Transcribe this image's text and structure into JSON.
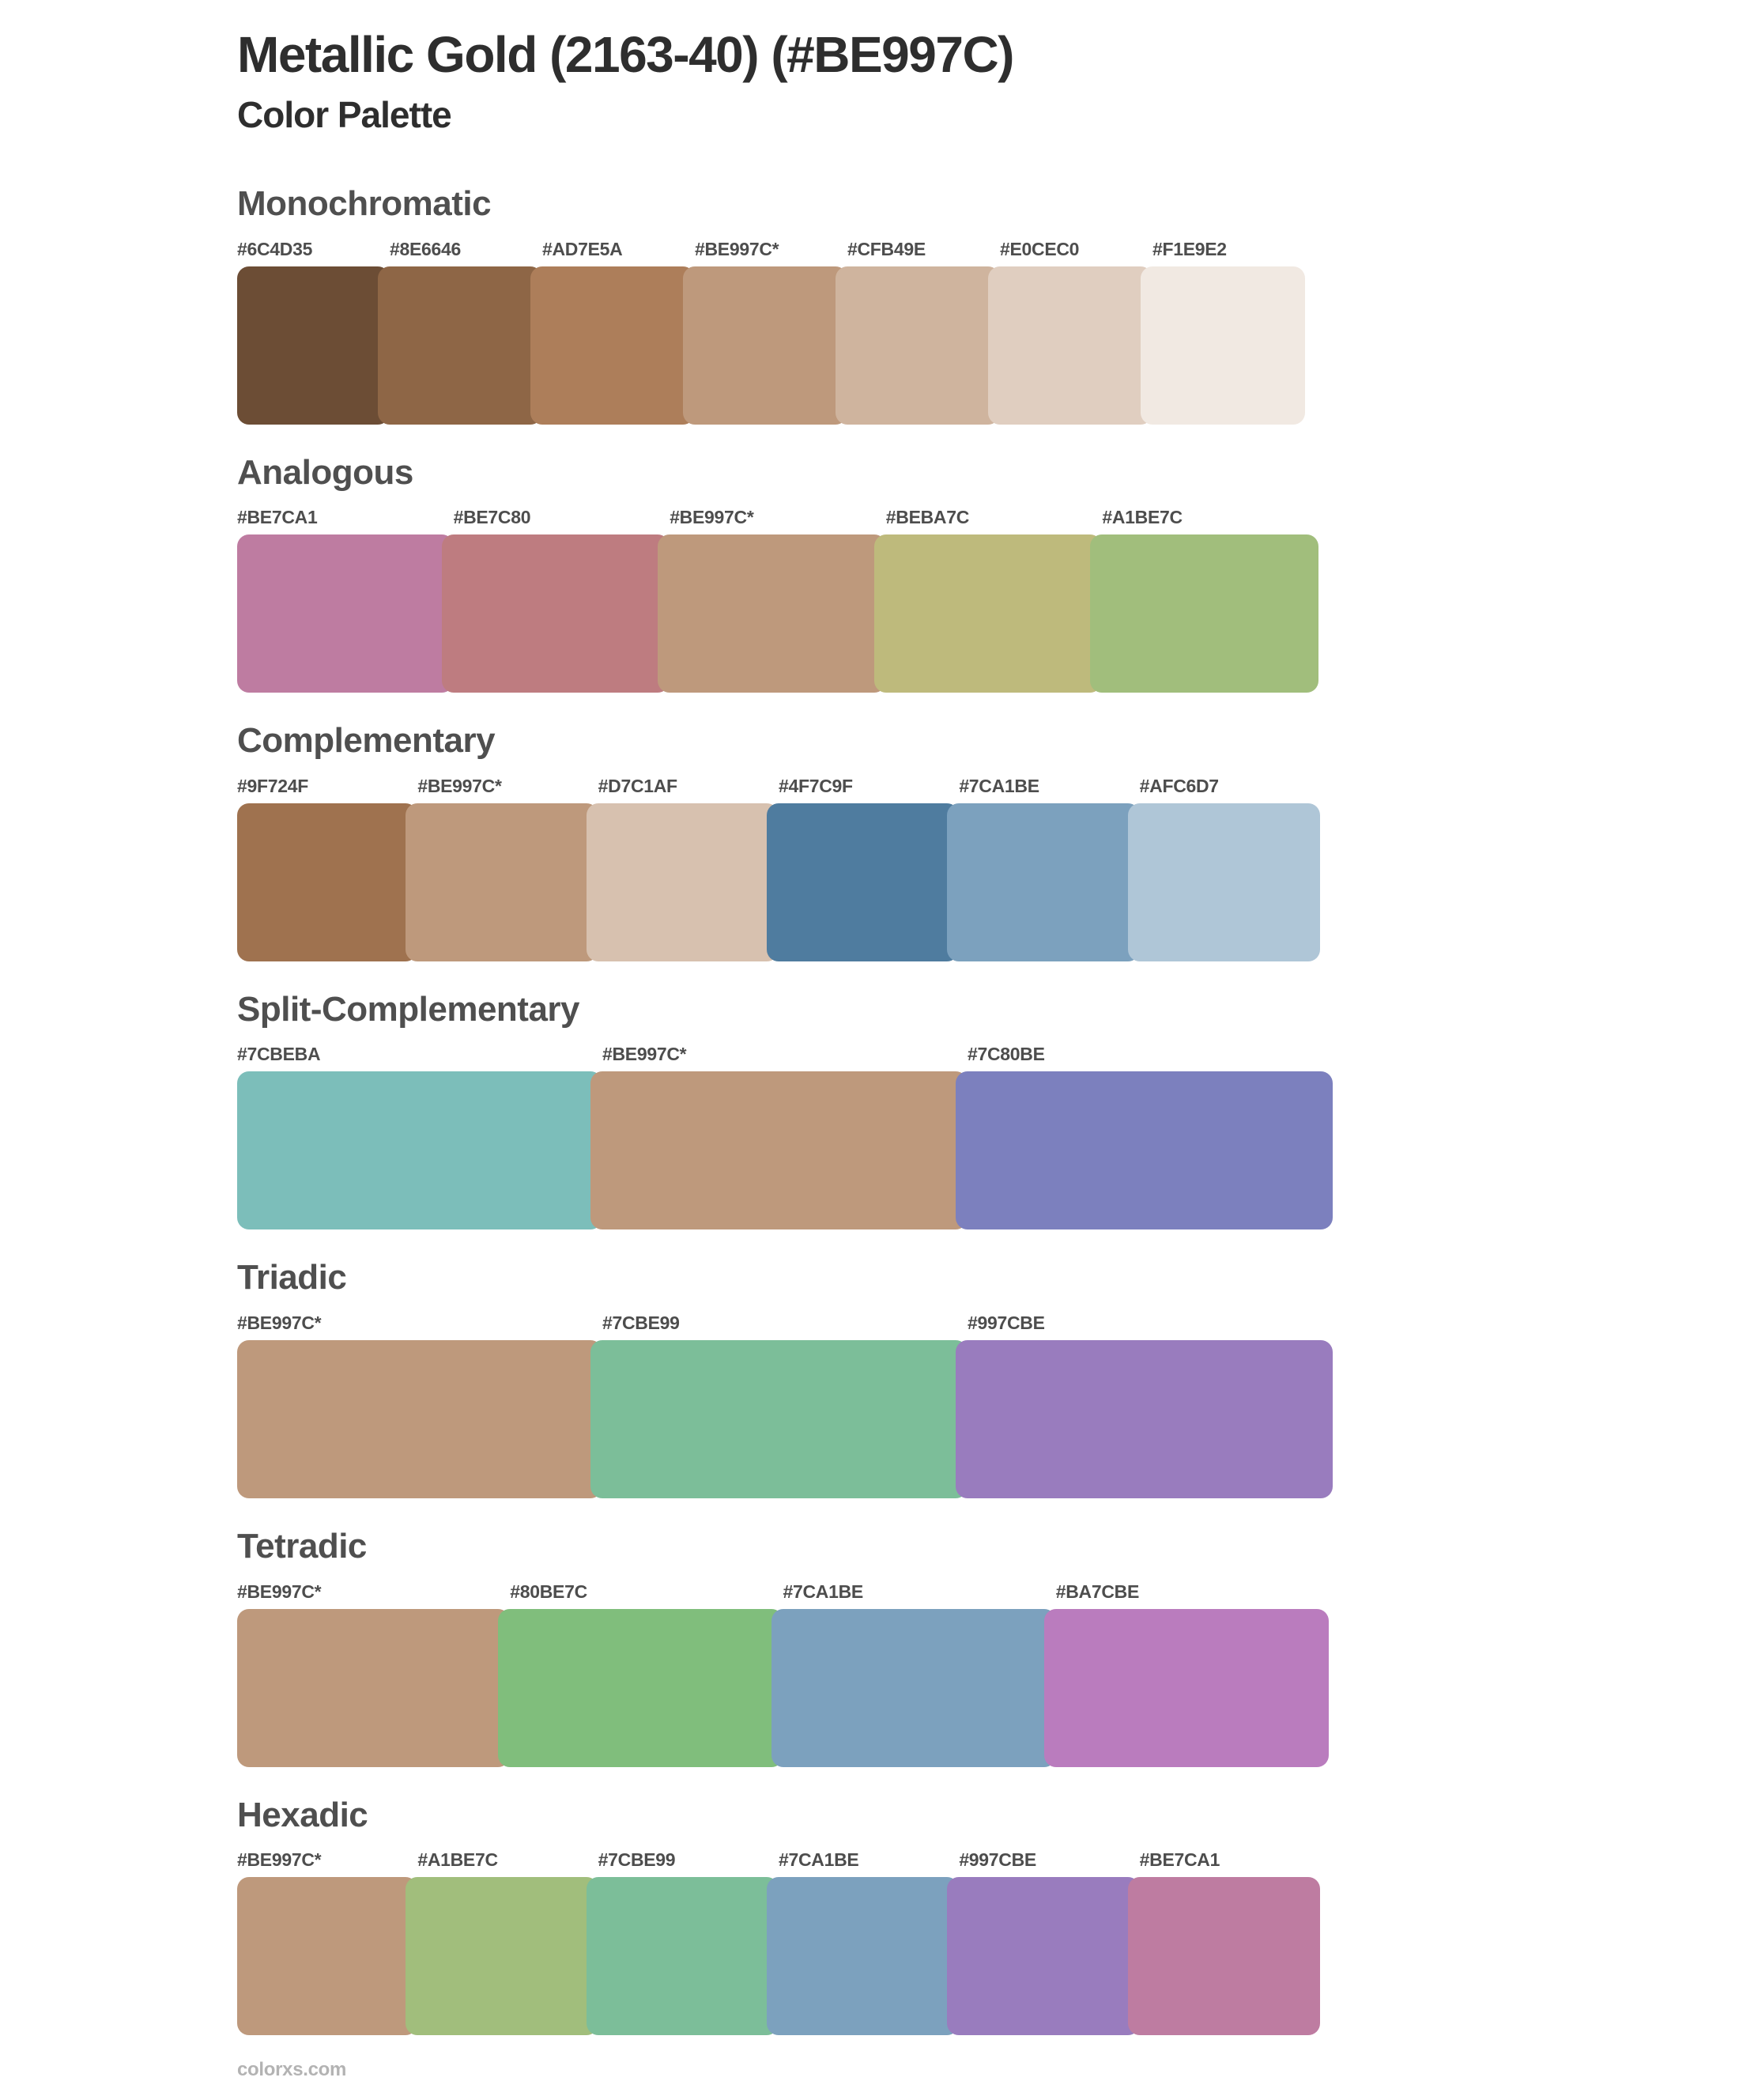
{
  "page": {
    "title": "Metallic Gold (2163-40) (#BE997C)",
    "subtitle": "Color Palette",
    "footer": "colorxs.com"
  },
  "base_color": "#BE997C",
  "text_colors": {
    "title": "#2e2e2e",
    "heading": "#4f4f4f",
    "label": "#4d4d4d",
    "footer": "#b3b3b3"
  },
  "sections": [
    {
      "name": "Monochromatic",
      "swatches": [
        {
          "label": "#6C4D35",
          "color": "#6C4D35"
        },
        {
          "label": "#8E6646",
          "color": "#8E6646"
        },
        {
          "label": "#AD7E5A",
          "color": "#AD7E5A"
        },
        {
          "label": "#BE997C*",
          "color": "#BE997C"
        },
        {
          "label": "#CFB49E",
          "color": "#CFB49E"
        },
        {
          "label": "#E0CEC0",
          "color": "#E0CEC0"
        },
        {
          "label": "#F1E9E2",
          "color": "#F1E9E2"
        }
      ]
    },
    {
      "name": "Analogous",
      "swatches": [
        {
          "label": "#BE7CA1",
          "color": "#BE7CA1"
        },
        {
          "label": "#BE7C80",
          "color": "#BE7C80"
        },
        {
          "label": "#BE997C*",
          "color": "#BE997C"
        },
        {
          "label": "#BEBA7C",
          "color": "#BEBA7C"
        },
        {
          "label": "#A1BE7C",
          "color": "#A1BE7C"
        }
      ]
    },
    {
      "name": "Complementary",
      "swatches": [
        {
          "label": "#9F724F",
          "color": "#9F724F"
        },
        {
          "label": "#BE997C*",
          "color": "#BE997C"
        },
        {
          "label": "#D7C1AF",
          "color": "#D7C1AF"
        },
        {
          "label": "#4F7C9F",
          "color": "#4F7C9F"
        },
        {
          "label": "#7CA1BE",
          "color": "#7CA1BE"
        },
        {
          "label": "#AFC6D7",
          "color": "#AFC6D7"
        }
      ]
    },
    {
      "name": "Split-Complementary",
      "swatches": [
        {
          "label": "#7CBEBA",
          "color": "#7CBEBA"
        },
        {
          "label": "#BE997C*",
          "color": "#BE997C"
        },
        {
          "label": "#7C80BE",
          "color": "#7C80BE"
        }
      ]
    },
    {
      "name": "Triadic",
      "swatches": [
        {
          "label": "#BE997C*",
          "color": "#BE997C"
        },
        {
          "label": "#7CBE99",
          "color": "#7CBE99"
        },
        {
          "label": "#997CBE",
          "color": "#997CBE"
        }
      ]
    },
    {
      "name": "Tetradic",
      "swatches": [
        {
          "label": "#BE997C*",
          "color": "#BE997C"
        },
        {
          "label": "#80BE7C",
          "color": "#80BE7C"
        },
        {
          "label": "#7CA1BE",
          "color": "#7CA1BE"
        },
        {
          "label": "#BA7CBE",
          "color": "#BA7CBE"
        }
      ]
    },
    {
      "name": "Hexadic",
      "swatches": [
        {
          "label": "#BE997C*",
          "color": "#BE997C"
        },
        {
          "label": "#A1BE7C",
          "color": "#A1BE7C"
        },
        {
          "label": "#7CBE99",
          "color": "#7CBE99"
        },
        {
          "label": "#7CA1BE",
          "color": "#7CA1BE"
        },
        {
          "label": "#997CBE",
          "color": "#997CBE"
        },
        {
          "label": "#BE7CA1",
          "color": "#BE7CA1"
        }
      ]
    }
  ]
}
